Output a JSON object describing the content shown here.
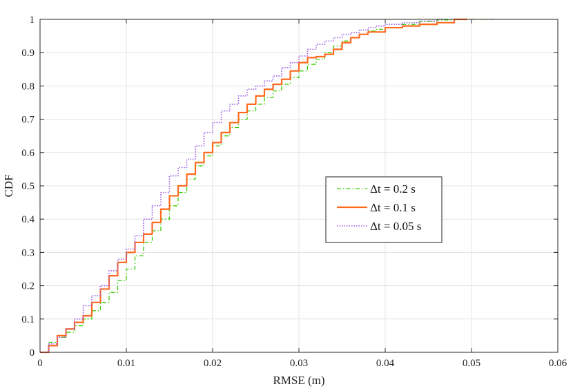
{
  "chart_data": {
    "type": "line",
    "title": "",
    "xlabel": "RMSE (m)",
    "ylabel": "CDF",
    "xlim": [
      0,
      0.06
    ],
    "ylim": [
      0,
      1
    ],
    "xticks": [
      "0",
      "0.01",
      "0.02",
      "0.03",
      "0.04",
      "0.05",
      "0.06"
    ],
    "yticks": [
      "0",
      "0.1",
      "0.2",
      "0.3",
      "0.4",
      "0.5",
      "0.6",
      "0.7",
      "0.8",
      "0.9",
      "1"
    ],
    "grid": true,
    "legend_position": "center-right",
    "series": [
      {
        "name": "Δt = 0.2 s",
        "color": "#33cc00",
        "dash": "dash-dot",
        "points": [
          [
            0,
            0
          ],
          [
            0.001,
            0.03
          ],
          [
            0.002,
            0.045
          ],
          [
            0.003,
            0.06
          ],
          [
            0.004,
            0.08
          ],
          [
            0.005,
            0.1
          ],
          [
            0.006,
            0.125
          ],
          [
            0.007,
            0.15
          ],
          [
            0.008,
            0.18
          ],
          [
            0.009,
            0.215
          ],
          [
            0.01,
            0.25
          ],
          [
            0.011,
            0.29
          ],
          [
            0.012,
            0.33
          ],
          [
            0.013,
            0.365
          ],
          [
            0.014,
            0.4
          ],
          [
            0.015,
            0.44
          ],
          [
            0.016,
            0.48
          ],
          [
            0.017,
            0.52
          ],
          [
            0.018,
            0.56
          ],
          [
            0.019,
            0.59
          ],
          [
            0.02,
            0.62
          ],
          [
            0.021,
            0.65
          ],
          [
            0.022,
            0.675
          ],
          [
            0.023,
            0.7
          ],
          [
            0.024,
            0.725
          ],
          [
            0.025,
            0.745
          ],
          [
            0.026,
            0.765
          ],
          [
            0.027,
            0.785
          ],
          [
            0.028,
            0.805
          ],
          [
            0.029,
            0.825
          ],
          [
            0.03,
            0.845
          ],
          [
            0.031,
            0.865
          ],
          [
            0.032,
            0.88
          ],
          [
            0.033,
            0.9
          ],
          [
            0.034,
            0.92
          ],
          [
            0.035,
            0.935
          ],
          [
            0.036,
            0.945
          ],
          [
            0.037,
            0.955
          ],
          [
            0.038,
            0.965
          ],
          [
            0.039,
            0.97
          ],
          [
            0.04,
            0.975
          ],
          [
            0.042,
            0.985
          ],
          [
            0.044,
            0.993
          ],
          [
            0.046,
            0.998
          ],
          [
            0.048,
            1.0
          ],
          [
            0.05,
            1.0
          ],
          [
            0.0527,
            1.0
          ]
        ]
      },
      {
        "name": "Δt = 0.1 s",
        "color": "#ff6a1f",
        "dash": "solid",
        "points": [
          [
            0,
            0
          ],
          [
            0.001,
            0.02
          ],
          [
            0.002,
            0.05
          ],
          [
            0.003,
            0.07
          ],
          [
            0.004,
            0.09
          ],
          [
            0.005,
            0.11
          ],
          [
            0.006,
            0.15
          ],
          [
            0.007,
            0.19
          ],
          [
            0.008,
            0.23
          ],
          [
            0.009,
            0.27
          ],
          [
            0.01,
            0.3
          ],
          [
            0.011,
            0.33
          ],
          [
            0.012,
            0.355
          ],
          [
            0.013,
            0.39
          ],
          [
            0.014,
            0.43
          ],
          [
            0.015,
            0.47
          ],
          [
            0.016,
            0.5
          ],
          [
            0.017,
            0.535
          ],
          [
            0.018,
            0.57
          ],
          [
            0.019,
            0.6
          ],
          [
            0.02,
            0.63
          ],
          [
            0.021,
            0.66
          ],
          [
            0.022,
            0.69
          ],
          [
            0.023,
            0.72
          ],
          [
            0.024,
            0.745
          ],
          [
            0.025,
            0.77
          ],
          [
            0.026,
            0.79
          ],
          [
            0.027,
            0.805
          ],
          [
            0.028,
            0.82
          ],
          [
            0.029,
            0.845
          ],
          [
            0.03,
            0.87
          ],
          [
            0.031,
            0.885
          ],
          [
            0.032,
            0.888
          ],
          [
            0.033,
            0.895
          ],
          [
            0.034,
            0.91
          ],
          [
            0.035,
            0.93
          ],
          [
            0.036,
            0.945
          ],
          [
            0.037,
            0.955
          ],
          [
            0.038,
            0.962
          ],
          [
            0.04,
            0.975
          ],
          [
            0.042,
            0.98
          ],
          [
            0.044,
            0.985
          ],
          [
            0.046,
            0.99
          ],
          [
            0.048,
            1.0
          ],
          [
            0.0495,
            1.0
          ]
        ]
      },
      {
        "name": "Δt = 0.05 s",
        "color": "#9b59e6",
        "dash": "dotted",
        "points": [
          [
            0,
            0
          ],
          [
            0.001,
            0.025
          ],
          [
            0.002,
            0.045
          ],
          [
            0.003,
            0.07
          ],
          [
            0.004,
            0.1
          ],
          [
            0.005,
            0.14
          ],
          [
            0.006,
            0.17
          ],
          [
            0.007,
            0.2
          ],
          [
            0.008,
            0.245
          ],
          [
            0.009,
            0.28
          ],
          [
            0.01,
            0.31
          ],
          [
            0.011,
            0.35
          ],
          [
            0.012,
            0.4
          ],
          [
            0.013,
            0.44
          ],
          [
            0.014,
            0.48
          ],
          [
            0.015,
            0.53
          ],
          [
            0.016,
            0.555
          ],
          [
            0.017,
            0.58
          ],
          [
            0.018,
            0.62
          ],
          [
            0.019,
            0.66
          ],
          [
            0.02,
            0.69
          ],
          [
            0.021,
            0.725
          ],
          [
            0.022,
            0.745
          ],
          [
            0.023,
            0.77
          ],
          [
            0.024,
            0.79
          ],
          [
            0.025,
            0.8
          ],
          [
            0.026,
            0.815
          ],
          [
            0.027,
            0.83
          ],
          [
            0.028,
            0.855
          ],
          [
            0.029,
            0.87
          ],
          [
            0.03,
            0.89
          ],
          [
            0.031,
            0.91
          ],
          [
            0.032,
            0.925
          ],
          [
            0.033,
            0.935
          ],
          [
            0.034,
            0.945
          ],
          [
            0.035,
            0.955
          ],
          [
            0.036,
            0.96
          ],
          [
            0.037,
            0.968
          ],
          [
            0.038,
            0.975
          ],
          [
            0.039,
            0.98
          ],
          [
            0.04,
            0.985
          ],
          [
            0.042,
            0.99
          ],
          [
            0.044,
            0.995
          ],
          [
            0.046,
            1.0
          ],
          [
            0.047,
            1.0
          ]
        ]
      }
    ]
  }
}
